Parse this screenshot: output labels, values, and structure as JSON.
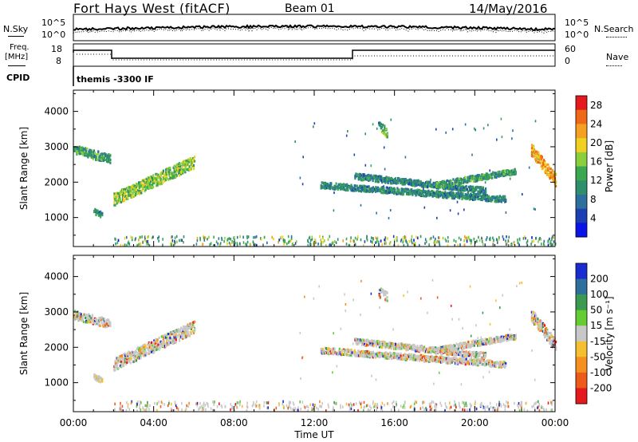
{
  "header": {
    "title": "Fort Hays West (fitACF)",
    "beam": "Beam 01",
    "date": "14/May/2016"
  },
  "strips": {
    "nsky_label": "N.Sky",
    "nsky_ticks": [
      "10^5",
      "10^0"
    ],
    "nsearch_label": "N.Search",
    "nsearch_ticks": [
      "10^5",
      "10^0"
    ],
    "freq_label_1": "Freq.",
    "freq_label_2": "[MHz]",
    "freq_ticks": [
      "18",
      "8"
    ],
    "nave_label": "Nave",
    "nave_ticks": [
      "60",
      "0"
    ],
    "cpid_label": "CPID",
    "cpid_text": "themis -3300 IF"
  },
  "chart_data": [
    {
      "type": "heatmap",
      "panel": "power",
      "ylabel": "Slant Range [km]",
      "xlabel": "Time UT",
      "x_ticks": [
        "00:00",
        "04:00",
        "08:00",
        "12:00",
        "16:00",
        "20:00",
        "00:00"
      ],
      "y_ticks": [
        1000,
        2000,
        3000,
        4000
      ],
      "ylim": [
        180,
        4600
      ],
      "xlim_hours": [
        0,
        24
      ],
      "colorbar": {
        "label": "Power [dB]",
        "ticks": [
          4,
          8,
          12,
          16,
          20,
          24,
          28
        ],
        "range": [
          0,
          30
        ],
        "colors": [
          "#0a14e6",
          "#1e3fb4",
          "#2e6f9e",
          "#2f8f6c",
          "#3aa850",
          "#8ccf3c",
          "#f0d020",
          "#f5a020",
          "#ee6a18",
          "#e41a1c"
        ]
      },
      "echo_regions": [
        {
          "t": [
            0.0,
            1.8
          ],
          "r_start": 2900,
          "r_end": 2650,
          "width": 180,
          "level": 12
        },
        {
          "t": [
            1.0,
            1.4
          ],
          "r_start": 1150,
          "r_end": 1050,
          "width": 120,
          "level": 10
        },
        {
          "t": [
            2.0,
            6.0
          ],
          "r_start": 1500,
          "r_end": 2550,
          "width": 250,
          "level": 16
        },
        {
          "t": [
            15.2,
            15.6
          ],
          "r_start": 3550,
          "r_end": 3400,
          "width": 200,
          "level": 14
        },
        {
          "t": [
            12.3,
            21.5
          ],
          "r_start": 1900,
          "r_end": 1500,
          "width": 120,
          "level": 10
        },
        {
          "t": [
            14.0,
            20.5
          ],
          "r_start": 2150,
          "r_end": 1750,
          "width": 120,
          "level": 10
        },
        {
          "t": [
            18.0,
            22.0
          ],
          "r_start": 1900,
          "r_end": 2300,
          "width": 120,
          "level": 12
        },
        {
          "t": [
            22.8,
            24.0
          ],
          "r_start": 2900,
          "r_end": 2050,
          "width": 250,
          "level": 22
        }
      ]
    },
    {
      "type": "heatmap",
      "panel": "velocity",
      "ylabel": "Slant Range [km]",
      "xlabel": "Time UT",
      "x_ticks": [
        "00:00",
        "04:00",
        "08:00",
        "12:00",
        "16:00",
        "20:00",
        "00:00"
      ],
      "y_ticks": [
        1000,
        2000,
        3000,
        4000
      ],
      "ylim": [
        180,
        4600
      ],
      "xlim_hours": [
        0,
        24
      ],
      "colorbar": {
        "label": "Velocity [m s⁻¹]",
        "ticks": [
          200,
          100,
          50,
          15,
          -15,
          -50,
          -100,
          -200
        ],
        "colors": [
          "#1a2ccf",
          "#2e6f9e",
          "#3a9a50",
          "#66cc33",
          "#c8c8c8",
          "#f5c030",
          "#f59020",
          "#ee5a18",
          "#e41a1c"
        ]
      }
    }
  ]
}
